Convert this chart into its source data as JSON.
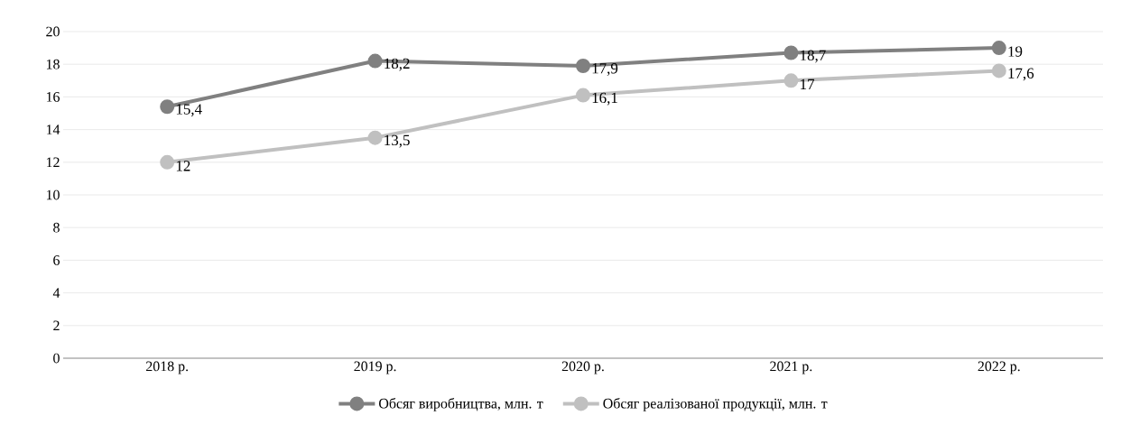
{
  "chart_data": {
    "type": "line",
    "categories": [
      "2018 р.",
      "2019 р.",
      "2020 р.",
      "2021 р.",
      "2022 р."
    ],
    "series": [
      {
        "name": "Обсяг виробництва, млн. т",
        "color": "#808080",
        "values": [
          15.4,
          18.2,
          17.9,
          18.7,
          19
        ],
        "value_labels": [
          "15,4",
          "18,2",
          "17,9",
          "18,7",
          "19"
        ]
      },
      {
        "name": "Обсяг реалізованої продукції, млн. т",
        "color": "#c0c0c0",
        "values": [
          12,
          13.5,
          16.1,
          17,
          17.6
        ],
        "value_labels": [
          "12",
          "13,5",
          "16,1",
          "17",
          "17,6"
        ]
      }
    ],
    "ylim": [
      0,
      20
    ],
    "yticks": [
      0,
      2,
      4,
      6,
      8,
      10,
      12,
      14,
      16,
      18,
      20
    ],
    "grid": "y",
    "legend": "bottom",
    "marker": "circle",
    "line_style": "solid"
  }
}
